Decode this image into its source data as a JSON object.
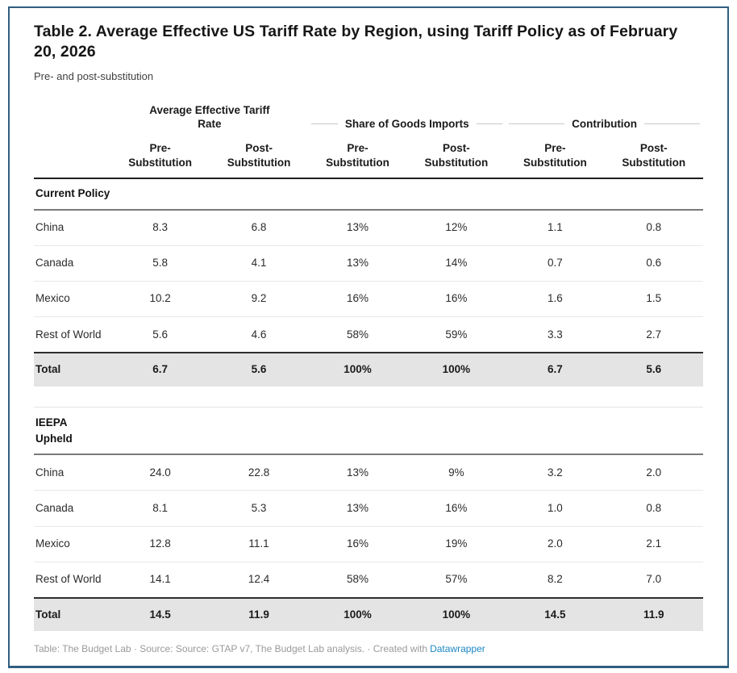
{
  "chart_data": {
    "type": "table",
    "title": "Table 2. Average Effective US Tariff Rate by Region, using Tariff Policy as of February 20, 2026",
    "subtitle": "Pre- and post-substitution",
    "column_groups": [
      {
        "label": "Average Effective Tariff Rate",
        "columns": [
          "Pre-Substitution",
          "Post-Substitution"
        ]
      },
      {
        "label": "Share of Goods Imports",
        "columns": [
          "Pre-Substitution",
          "Post-Substitution"
        ]
      },
      {
        "label": "Contribution",
        "columns": [
          "Pre-Substitution",
          "Post-Substitution"
        ]
      }
    ],
    "sections": [
      {
        "label": "Current Policy",
        "rows": [
          {
            "region": "China",
            "values": [
              "8.3",
              "6.8",
              "13%",
              "12%",
              "1.1",
              "0.8"
            ]
          },
          {
            "region": "Canada",
            "values": [
              "5.8",
              "4.1",
              "13%",
              "14%",
              "0.7",
              "0.6"
            ]
          },
          {
            "region": "Mexico",
            "values": [
              "10.2",
              "9.2",
              "16%",
              "16%",
              "1.6",
              "1.5"
            ]
          },
          {
            "region": "Rest of World",
            "values": [
              "5.6",
              "4.6",
              "58%",
              "59%",
              "3.3",
              "2.7"
            ]
          }
        ],
        "total": {
          "region": "Total",
          "values": [
            "6.7",
            "5.6",
            "100%",
            "100%",
            "6.7",
            "5.6"
          ]
        }
      },
      {
        "label": "IEEPA\nUpheld",
        "rows": [
          {
            "region": "China",
            "values": [
              "24.0",
              "22.8",
              "13%",
              "9%",
              "3.2",
              "2.0"
            ]
          },
          {
            "region": "Canada",
            "values": [
              "8.1",
              "5.3",
              "13%",
              "16%",
              "1.0",
              "0.8"
            ]
          },
          {
            "region": "Mexico",
            "values": [
              "12.8",
              "11.1",
              "16%",
              "19%",
              "2.0",
              "2.1"
            ]
          },
          {
            "region": "Rest of World",
            "values": [
              "14.1",
              "12.4",
              "58%",
              "57%",
              "8.2",
              "7.0"
            ]
          }
        ],
        "total": {
          "region": "Total",
          "values": [
            "14.5",
            "11.9",
            "100%",
            "100%",
            "14.5",
            "11.9"
          ]
        }
      }
    ]
  },
  "footer": {
    "credit": "Table: The Budget Lab · Source: Source: GTAP v7, The Budget Lab analysis. · Created with",
    "link_label": "Datawrapper"
  },
  "colors": {
    "frame_border": "#305e80",
    "total_row_bg": "#e4e4e4",
    "header_rule": "#1f1f1f",
    "section_rule": "#7a7a7a",
    "group_line": "#c9c9c9",
    "link": "#1d87c4"
  }
}
